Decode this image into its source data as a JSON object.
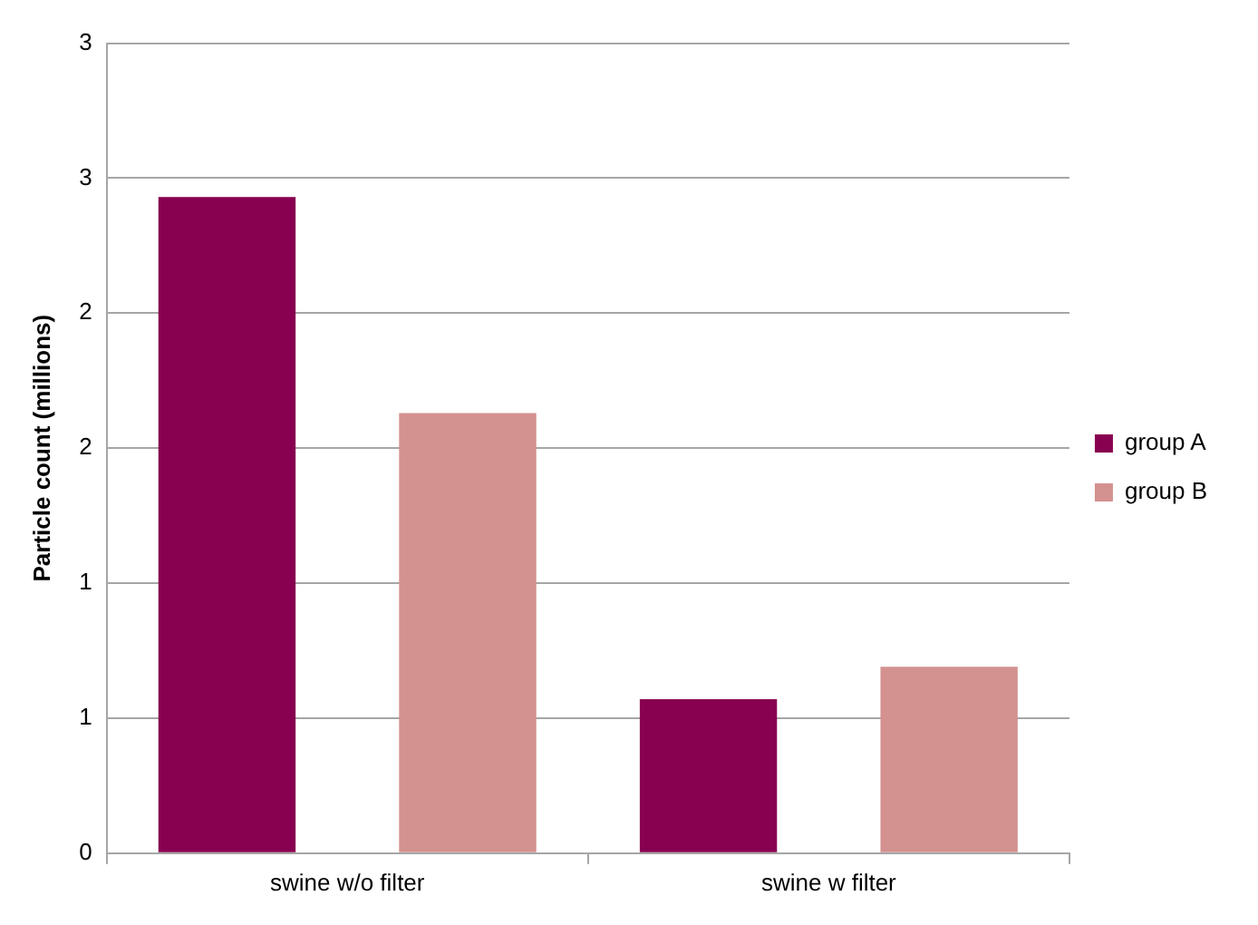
{
  "chart_data": {
    "type": "bar",
    "ylabel": "Particle count (millions)",
    "categories": [
      "swine w/o filter",
      "swine w filter"
    ],
    "series": [
      {
        "name": "group A",
        "color": "#880050",
        "values": [
          2.43,
          0.57
        ]
      },
      {
        "name": "group B",
        "color": "#d3918f",
        "values": [
          1.63,
          0.69
        ]
      }
    ],
    "ylim": [
      0,
      3
    ],
    "yticks": [
      0,
      {
        "value": 0.5,
        "label": "1"
      },
      1,
      {
        "value": 1.5,
        "label": "2"
      },
      2,
      {
        "value": 2.5,
        "label": "3"
      },
      3
    ],
    "grid": "y",
    "legend": "right"
  }
}
